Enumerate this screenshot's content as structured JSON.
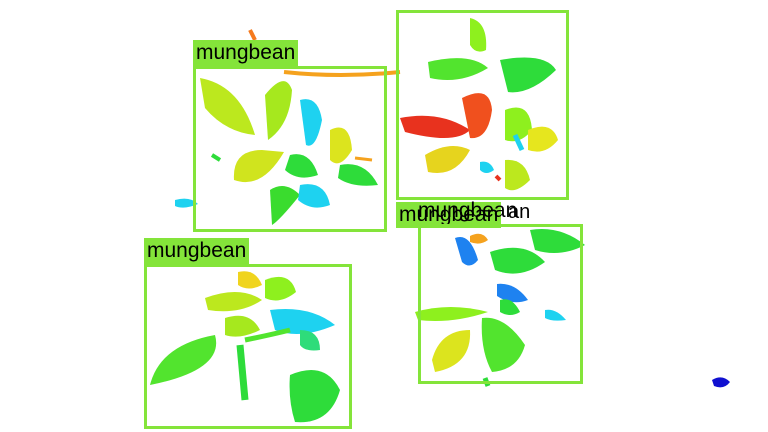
{
  "box_color": "#84e43a",
  "detections": [
    {
      "label": "mungbean"
    },
    {
      "label": "mungbean"
    },
    {
      "label": "mungbean"
    },
    {
      "label": "mungbean"
    }
  ],
  "overlap_label_fragment": "an",
  "palette": {
    "red": "#e8321e",
    "orange": "#f5a21e",
    "yellow": "#e6e61e",
    "lime": "#8ef01e",
    "green": "#2edc3a",
    "cyan": "#1ed2f0",
    "blue": "#1e82f0",
    "navy": "#1010d0"
  }
}
